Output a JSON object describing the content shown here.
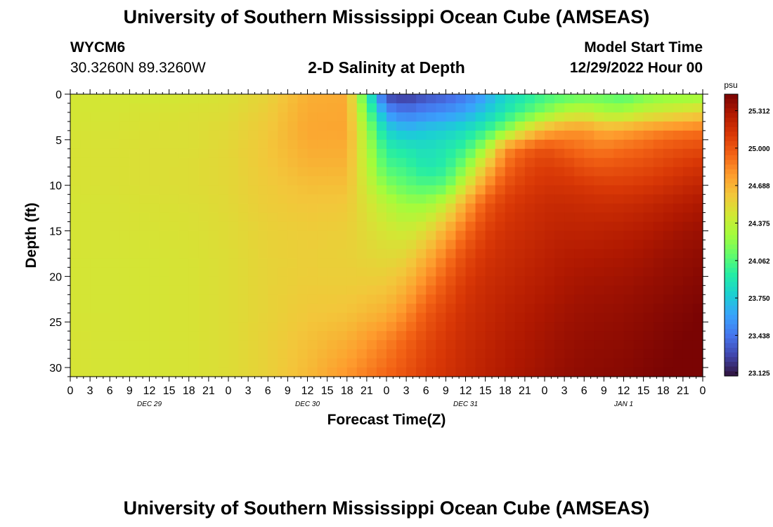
{
  "page": {
    "title": "University of Southern Mississippi Ocean Cube (AMSEAS)",
    "bottom_title": "University of Southern Mississippi Ocean Cube (AMSEAS)"
  },
  "header": {
    "station_id": "WYCM6",
    "coordinates": "30.3260N  89.3260W",
    "plot_title": "2-D Salinity at Depth",
    "model_start_label": "Model Start Time",
    "model_start_time": "12/29/2022 Hour 00"
  },
  "chart_data": {
    "type": "heatmap",
    "title": "2-D Salinity at Depth",
    "xlabel": "Forecast Time(Z)",
    "ylabel": "Depth (ft)",
    "x_tick_labels": [
      "0",
      "3",
      "6",
      "9",
      "12",
      "15",
      "18",
      "21",
      "0",
      "3",
      "6",
      "9",
      "12",
      "15",
      "18",
      "21",
      "0",
      "3",
      "6",
      "9",
      "12",
      "15",
      "18",
      "21",
      "0",
      "3",
      "6",
      "9",
      "12",
      "15",
      "18",
      "21",
      "0"
    ],
    "date_labels": [
      "DEC 29",
      "DEC 30",
      "DEC 31",
      "JAN 1"
    ],
    "x_range_hours": [
      0,
      96
    ],
    "y_ticks": [
      0,
      5,
      10,
      15,
      20,
      25,
      30
    ],
    "ylim": [
      0,
      31
    ],
    "y_inverted": true,
    "colorbar": {
      "unit": "psu",
      "ticks": [
        "25.312",
        "25.000",
        "24.688",
        "24.375",
        "24.062",
        "23.750",
        "23.438",
        "23.125"
      ],
      "range": [
        23.1,
        25.45
      ],
      "colors": [
        "#30123b",
        "#4145ab",
        "#4675ed",
        "#39a2fc",
        "#1bcfd4",
        "#24eca6",
        "#61fc6c",
        "#a4fc3b",
        "#d1e834",
        "#f3c63a",
        "#fe9b2d",
        "#f36315",
        "#d93806",
        "#b11901",
        "#7a0403"
      ]
    },
    "salinity_grid": {
      "hours": [
        0,
        6,
        12,
        18,
        24,
        30,
        36,
        42,
        48,
        51,
        54,
        57,
        60,
        63,
        66,
        69,
        72,
        75,
        78,
        81,
        84,
        87,
        90,
        93,
        96
      ],
      "depths_ft": [
        0,
        2,
        4,
        6,
        8,
        10,
        12,
        15,
        18,
        21,
        24,
        27,
        31
      ],
      "values_psu": [
        [
          24.45,
          24.45,
          24.46,
          24.47,
          24.47,
          24.47,
          24.46,
          24.46,
          24.46,
          24.46,
          24.46,
          24.47,
          24.47
        ],
        [
          24.45,
          24.46,
          24.47,
          24.48,
          24.48,
          24.48,
          24.47,
          24.47,
          24.46,
          24.46,
          24.46,
          24.46,
          24.46
        ],
        [
          24.44,
          24.47,
          24.48,
          24.49,
          24.49,
          24.49,
          24.48,
          24.47,
          24.46,
          24.46,
          24.46,
          24.46,
          24.46
        ],
        [
          24.45,
          24.48,
          24.49,
          24.49,
          24.5,
          24.5,
          24.49,
          24.48,
          24.47,
          24.47,
          24.47,
          24.47,
          24.47
        ],
        [
          24.48,
          24.5,
          24.52,
          24.53,
          24.53,
          24.53,
          24.52,
          24.51,
          24.5,
          24.5,
          24.5,
          24.5,
          24.5
        ],
        [
          24.55,
          24.58,
          24.6,
          24.61,
          24.6,
          24.59,
          24.58,
          24.56,
          24.55,
          24.55,
          24.55,
          24.56,
          24.56
        ],
        [
          24.7,
          24.72,
          24.73,
          24.71,
          24.68,
          24.64,
          24.61,
          24.58,
          24.57,
          24.58,
          24.6,
          24.63,
          24.66
        ],
        [
          24.72,
          24.73,
          24.74,
          24.71,
          24.68,
          24.64,
          24.6,
          24.57,
          24.56,
          24.58,
          24.62,
          24.7,
          24.8
        ],
        [
          23.25,
          23.55,
          23.8,
          23.95,
          24.05,
          24.2,
          24.35,
          24.45,
          24.52,
          24.6,
          24.7,
          24.85,
          24.95
        ],
        [
          23.2,
          23.45,
          23.7,
          23.9,
          24.0,
          24.1,
          24.25,
          24.42,
          24.55,
          24.68,
          24.82,
          24.95,
          25.02
        ],
        [
          23.3,
          23.5,
          23.75,
          23.85,
          23.9,
          24.05,
          24.25,
          24.5,
          24.7,
          24.85,
          24.98,
          25.05,
          25.1
        ],
        [
          23.35,
          23.55,
          23.78,
          23.9,
          23.95,
          24.1,
          24.4,
          24.7,
          24.88,
          25.0,
          25.08,
          25.12,
          25.15
        ],
        [
          23.45,
          23.62,
          23.85,
          24.0,
          24.2,
          24.45,
          24.72,
          24.92,
          25.05,
          25.12,
          25.16,
          25.18,
          25.2
        ],
        [
          23.6,
          23.75,
          23.98,
          24.3,
          24.6,
          24.8,
          24.98,
          25.08,
          25.14,
          25.18,
          25.2,
          25.22,
          25.24
        ],
        [
          23.8,
          23.9,
          24.2,
          24.8,
          24.92,
          25.02,
          25.1,
          25.15,
          25.18,
          25.21,
          25.24,
          25.26,
          25.28
        ],
        [
          23.9,
          24.05,
          24.5,
          24.95,
          25.05,
          25.1,
          25.15,
          25.18,
          25.21,
          25.24,
          25.27,
          25.29,
          25.31
        ],
        [
          24.0,
          24.2,
          24.7,
          25.02,
          25.1,
          25.14,
          25.18,
          25.21,
          25.24,
          25.27,
          25.3,
          25.32,
          25.34
        ],
        [
          24.05,
          24.35,
          24.78,
          24.96,
          25.08,
          25.14,
          25.19,
          25.23,
          25.27,
          25.3,
          25.33,
          25.35,
          25.37
        ],
        [
          24.1,
          24.4,
          24.8,
          24.9,
          25.02,
          25.12,
          25.18,
          25.23,
          25.28,
          25.32,
          25.35,
          25.37,
          25.39
        ],
        [
          24.1,
          24.3,
          24.72,
          24.88,
          25.0,
          25.1,
          25.17,
          25.24,
          25.29,
          25.33,
          25.36,
          25.38,
          25.4
        ],
        [
          24.05,
          24.3,
          24.75,
          24.92,
          25.02,
          25.1,
          25.18,
          25.25,
          25.3,
          25.34,
          25.37,
          25.39,
          25.41
        ],
        [
          24.15,
          24.4,
          24.8,
          24.95,
          25.04,
          25.12,
          25.2,
          25.27,
          25.32,
          25.36,
          25.39,
          25.41,
          25.43
        ],
        [
          24.2,
          24.45,
          24.85,
          25.0,
          25.08,
          25.15,
          25.23,
          25.3,
          25.35,
          25.38,
          25.41,
          25.43,
          25.45
        ],
        [
          24.2,
          24.5,
          24.88,
          25.03,
          25.12,
          25.19,
          25.26,
          25.33,
          25.37,
          25.4,
          25.43,
          25.45,
          25.46
        ],
        [
          24.22,
          24.55,
          24.9,
          25.05,
          25.15,
          25.22,
          25.29,
          25.35,
          25.39,
          25.42,
          25.45,
          25.46,
          25.47
        ]
      ]
    }
  }
}
